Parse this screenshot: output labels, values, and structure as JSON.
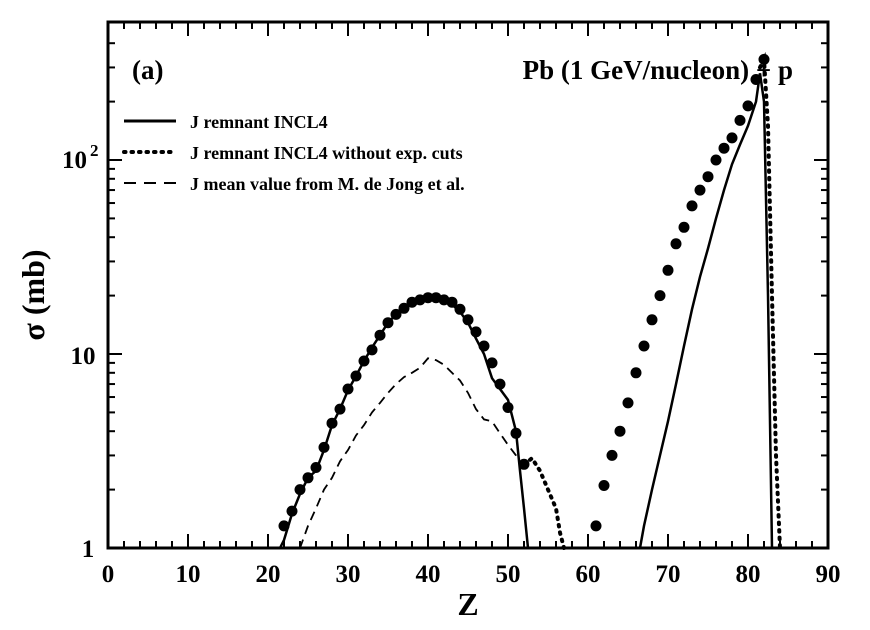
{
  "chart_data": {
    "type": "line",
    "panel_label": "(a)",
    "title": "Pb (1 GeV/nucleon) + p",
    "xlabel": "Z",
    "ylabel": "σ (mb)",
    "xlim": [
      0,
      90
    ],
    "ylim": [
      1,
      420
    ],
    "yscale": "log",
    "x_ticks": [
      0,
      10,
      20,
      30,
      40,
      50,
      60,
      70,
      80,
      90
    ],
    "x_tick_labels": [
      "0",
      "10",
      "20",
      "30",
      "40",
      "50",
      "60",
      "70",
      "80",
      "90"
    ],
    "y_tick_labels": {
      "one": "1",
      "ten": "10",
      "hundred_base": "10",
      "hundred_exp": "2"
    },
    "legend": [
      {
        "style": "solid",
        "label": "J remnant INCL4"
      },
      {
        "style": "dotted",
        "label": "J remnant INCL4 without exp. cuts"
      },
      {
        "style": "dashed",
        "label": "J mean value from M. de Jong et al."
      }
    ],
    "experimental_points": {
      "name": "experimental data",
      "x": [
        22,
        23,
        24,
        25,
        26,
        27,
        28,
        29,
        30,
        31,
        32,
        33,
        34,
        35,
        36,
        37,
        38,
        39,
        40,
        41,
        42,
        43,
        44,
        45,
        46,
        47,
        48,
        49,
        50,
        51,
        52,
        61,
        62,
        63,
        64,
        65,
        66,
        67,
        68,
        69,
        70,
        71,
        72,
        73,
        74,
        75,
        76,
        77,
        78,
        79,
        80,
        81,
        82
      ],
      "y": [
        1.3,
        1.55,
        2.0,
        2.3,
        2.6,
        3.3,
        4.4,
        5.2,
        6.6,
        7.7,
        9.2,
        10.5,
        12.5,
        14.5,
        16.0,
        17.2,
        18.5,
        19.0,
        19.5,
        19.5,
        19.0,
        18.5,
        17.0,
        15.0,
        13.0,
        11.0,
        9.0,
        7.0,
        5.3,
        3.9,
        2.7,
        1.3,
        2.1,
        3.0,
        4.0,
        5.6,
        8.0,
        11.0,
        15.0,
        20.0,
        27.0,
        37.0,
        45.0,
        58.0,
        70.0,
        82.0,
        100.0,
        115.0,
        130.0,
        160.0,
        190.0,
        260.0,
        330.0
      ]
    },
    "series": [
      {
        "name": "J remnant INCL4",
        "style": "solid",
        "x": [
          21.5,
          22,
          23,
          24,
          25,
          26,
          27,
          28,
          29,
          30,
          31,
          32,
          33,
          34,
          35,
          36,
          37,
          38,
          39,
          40,
          41,
          42,
          43,
          44,
          45,
          46,
          47,
          48,
          49,
          50,
          51,
          51.5,
          52,
          52.5,
          66.5,
          67,
          68,
          69,
          70,
          71,
          72,
          73,
          74,
          75,
          76,
          77,
          78,
          79,
          80,
          81,
          81.5,
          82,
          82.5,
          83
        ],
        "y": [
          1.0,
          1.1,
          1.5,
          1.9,
          2.3,
          2.5,
          3.2,
          4.3,
          5.2,
          6.5,
          7.7,
          9.2,
          10.8,
          12.5,
          14.5,
          16.0,
          17.5,
          18.5,
          19.0,
          19.5,
          19.5,
          19.0,
          18.0,
          16.5,
          14.5,
          12.0,
          10.0,
          7.5,
          6.6,
          5.8,
          4.0,
          2.5,
          1.6,
          1.0,
          1.0,
          1.3,
          2.0,
          3.0,
          4.5,
          7.0,
          11.0,
          17.0,
          25.0,
          35.0,
          50.0,
          70.0,
          95.0,
          120.0,
          150.0,
          200.0,
          280.0,
          200.0,
          20.0,
          1.0
        ]
      },
      {
        "name": "J remnant INCL4 without exp. cuts",
        "style": "dotted",
        "x": [
          52,
          53,
          54,
          55,
          56,
          56.5,
          57,
          81.5,
          82,
          82.5,
          83,
          83.5,
          84
        ],
        "y": [
          2.7,
          2.9,
          2.5,
          2.0,
          1.6,
          1.2,
          1.0,
          300.0,
          330.0,
          150.0,
          20.0,
          3.0,
          1.0
        ]
      },
      {
        "name": "J mean value from M. de Jong et al.",
        "style": "dashed",
        "x": [
          24,
          25,
          26,
          27,
          28,
          29,
          30,
          31,
          32,
          33,
          34,
          35,
          36,
          37,
          38,
          39,
          40,
          41,
          42,
          43,
          44,
          45,
          46,
          47,
          48,
          49,
          50,
          51,
          52
        ],
        "y": [
          1.0,
          1.3,
          1.6,
          2.0,
          2.3,
          2.8,
          3.2,
          3.8,
          4.3,
          5.0,
          5.6,
          6.3,
          7.0,
          7.6,
          8.0,
          8.5,
          9.5,
          9.3,
          8.8,
          8.0,
          7.3,
          6.3,
          5.2,
          4.6,
          4.5,
          3.9,
          3.4,
          3.0,
          2.5
        ]
      }
    ]
  }
}
